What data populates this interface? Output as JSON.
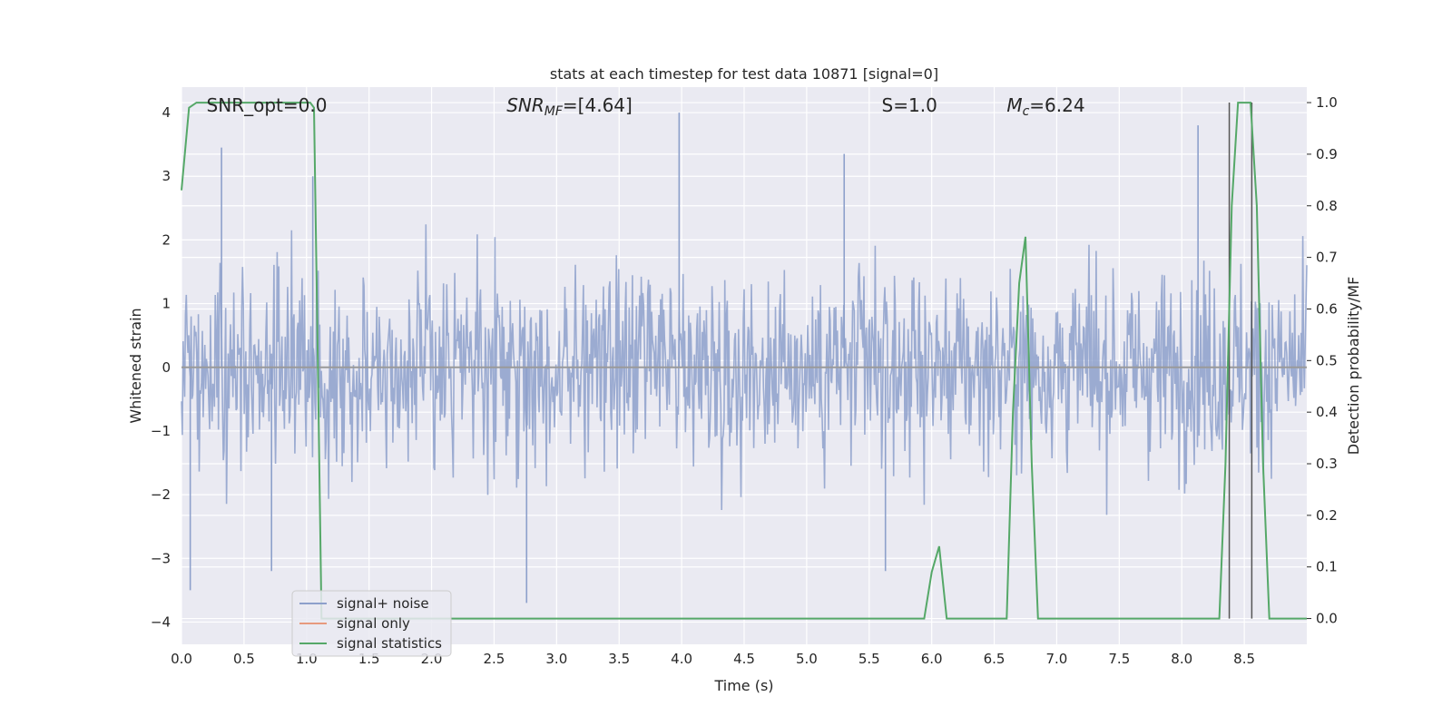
{
  "chart_data": {
    "type": "line",
    "title": "stats at each timestep for test data 10871 [signal=0]",
    "xlabel": "Time (s)",
    "ylabel": "Whitened strain",
    "y2label": "Detection probability/MF",
    "xlim": [
      0,
      9.0
    ],
    "ylim": [
      -4.35,
      4.4
    ],
    "y2lim": [
      -0.05,
      1.03
    ],
    "xticks": [
      0.0,
      0.5,
      1.0,
      1.5,
      2.0,
      2.5,
      3.0,
      3.5,
      4.0,
      4.5,
      5.0,
      5.5,
      6.0,
      6.5,
      7.0,
      7.5,
      8.0,
      8.5
    ],
    "xtick_labels": [
      "0.0",
      "0.5",
      "1.0",
      "1.5",
      "2.0",
      "2.5",
      "3.0",
      "3.5",
      "4.0",
      "4.5",
      "5.0",
      "5.5",
      "6.0",
      "6.5",
      "7.0",
      "7.5",
      "8.0",
      "8.5"
    ],
    "yticks": [
      -4,
      -3,
      -2,
      -1,
      0,
      1,
      2,
      3,
      4
    ],
    "ytick_labels": [
      "−4",
      "−3",
      "−2",
      "−1",
      "0",
      "1",
      "2",
      "3",
      "4"
    ],
    "y2ticks": [
      0.0,
      0.1,
      0.2,
      0.3,
      0.4,
      0.5,
      0.6,
      0.7,
      0.8,
      0.9,
      1.0
    ],
    "y2tick_labels": [
      "0.0",
      "0.1",
      "0.2",
      "0.3",
      "0.4",
      "0.5",
      "0.6",
      "0.7",
      "0.8",
      "0.9",
      "1.0"
    ],
    "grid": true,
    "annotations": [
      {
        "text": "SNR_opt=0.0",
        "x": 0.2
      },
      {
        "text": "SNR_MF=[4.64]",
        "x": 2.6
      },
      {
        "text": "S=1.0",
        "x": 5.6
      },
      {
        "text": "M_c=6.24",
        "x": 6.6
      }
    ],
    "legend": {
      "placement": "lower-left",
      "entries": [
        "signal+ noise",
        "signal only",
        "signal statistics"
      ]
    },
    "series": [
      {
        "name": "signal+ noise",
        "axis": "left",
        "style": "dense noise trace",
        "color": "#8da0cb",
        "x_range": [
          0,
          9.0
        ],
        "approx_envelope": [
          -3.7,
          4.0
        ],
        "peaks": [
          {
            "x": 0.07,
            "y": -3.5
          },
          {
            "x": 0.32,
            "y": 3.45
          },
          {
            "x": 0.72,
            "y": -3.2
          },
          {
            "x": 1.05,
            "y": 3.0
          },
          {
            "x": 2.76,
            "y": -3.7
          },
          {
            "x": 3.98,
            "y": 4.0
          },
          {
            "x": 5.3,
            "y": 3.35
          },
          {
            "x": 5.63,
            "y": -3.2
          },
          {
            "x": 8.13,
            "y": 3.8
          }
        ]
      },
      {
        "name": "signal only",
        "axis": "left",
        "color": "#e79a7e",
        "x": [
          0,
          9.0
        ],
        "y": [
          0,
          0
        ]
      },
      {
        "name": "signal statistics",
        "axis": "right",
        "color": "#55a868",
        "x": [
          0.0,
          0.06,
          0.12,
          0.2,
          0.5,
          1.0,
          1.03,
          1.06,
          1.09,
          1.12,
          1.2,
          1.5,
          2.0,
          3.0,
          4.0,
          5.0,
          5.5,
          5.94,
          6.0,
          6.06,
          6.12,
          6.5,
          6.6,
          6.65,
          6.7,
          6.75,
          6.8,
          6.85,
          7.0,
          8.0,
          8.3,
          8.35,
          8.4,
          8.45,
          8.5,
          8.55,
          8.6,
          8.65,
          8.7,
          8.9,
          9.0
        ],
        "y": [
          0.83,
          0.99,
          1.0,
          1.0,
          1.0,
          1.0,
          1.0,
          0.99,
          0.5,
          0.0,
          0.0,
          0.0,
          0.0,
          0.0,
          0.0,
          0.0,
          0.0,
          0.0,
          0.09,
          0.14,
          0.0,
          0.0,
          0.0,
          0.4,
          0.65,
          0.74,
          0.3,
          0.0,
          0.0,
          0.0,
          0.0,
          0.3,
          0.8,
          1.0,
          1.0,
          1.0,
          0.8,
          0.3,
          0.0,
          0.0,
          0.0
        ]
      }
    ],
    "markers": [
      {
        "x": 8.38,
        "type": "vertical-line",
        "color": "#555555",
        "y2_range": [
          0.0,
          1.0
        ]
      },
      {
        "x": 8.56,
        "type": "vertical-line",
        "color": "#555555",
        "y2_range": [
          0.0,
          1.0
        ]
      }
    ]
  }
}
